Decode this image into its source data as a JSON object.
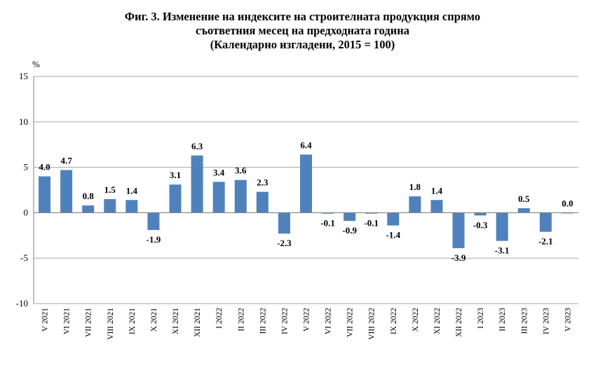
{
  "title_lines": [
    "Фиг. 3. Изменение на индексите на строителната продукция спрямо",
    "съответния месец на предходната година",
    "(Календарно изгладени, 2015 = 100)"
  ],
  "y_unit": "%",
  "colors": {
    "bar": "#4f81bd",
    "grid": "#a6a6a6",
    "axis": "#808080"
  },
  "chart_data": {
    "type": "bar",
    "title": "Фиг. 3. Изменение на индексите на строителната продукция спрямо съответния месец на предходната година (Календарно изгладени, 2015 = 100)",
    "xlabel": "",
    "ylabel": "%",
    "ylim": [
      -10,
      15
    ],
    "yticks": [
      -10,
      -5,
      0,
      5,
      10,
      15
    ],
    "grid": true,
    "categories": [
      "V 2021",
      "VI 2021",
      "VII 2021",
      "VIII 2021",
      "IX 2021",
      "X 2021",
      "XI 2021",
      "XII 2021",
      "I 2022",
      "II 2022",
      "III 2022",
      "IV 2022",
      "V 2022",
      "VI 2022",
      "VII 2022",
      "VIII 2022",
      "IX 2022",
      "X 2022",
      "XI 2022",
      "XII 2022",
      "I 2023",
      "II 2023",
      "III 2023",
      "IV 2023",
      "V 2023"
    ],
    "values": [
      4.0,
      4.7,
      0.8,
      1.5,
      1.4,
      -1.9,
      3.1,
      6.3,
      3.4,
      3.6,
      2.3,
      -2.3,
      6.4,
      -0.1,
      -0.9,
      -0.1,
      -1.4,
      1.8,
      1.4,
      -3.9,
      -0.3,
      -3.1,
      0.5,
      -2.1,
      0.0
    ],
    "data_labels": [
      "4.0",
      "4.7",
      "0.8",
      "1.5",
      "1.4",
      "-1.9",
      "3.1",
      "6.3",
      "3.4",
      "3.6",
      "2.3",
      "-2.3",
      "6.4",
      "-0.1",
      "-0.9",
      "-0.1",
      "-1.4",
      "1.8",
      "1.4",
      "-3.9",
      "-0.3",
      "-3.1",
      "0.5",
      "-2.1",
      "0.0"
    ]
  }
}
